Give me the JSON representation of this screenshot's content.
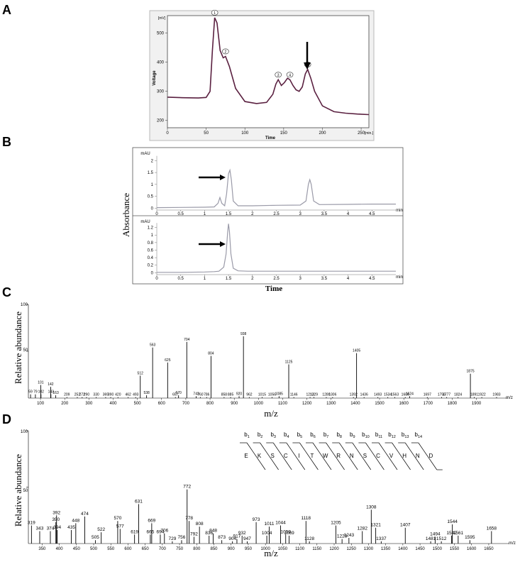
{
  "panels": {
    "A": {
      "letter": "A",
      "ylabel": "Voltage",
      "xlabel": "Time",
      "y_unit": "[mV]",
      "x_unit": "[min.]",
      "xticks": [
        0,
        50,
        100,
        150,
        200,
        250
      ],
      "yticks": [
        200,
        300,
        400,
        500
      ],
      "peak_markers": [
        {
          "label": "1",
          "x": 61,
          "y": 553
        },
        {
          "label": "2",
          "x": 75,
          "y": 420
        },
        {
          "label": "3",
          "x": 143,
          "y": 340
        },
        {
          "label": "4",
          "x": 158,
          "y": 340
        },
        {
          "label": "5",
          "x": 181,
          "y": 375
        }
      ]
    },
    "B": {
      "letter": "B",
      "ylabel": "Absorbance",
      "xlabel": "Time",
      "unit_y": "mAU",
      "unit_x": "min",
      "xticks": [
        "0",
        "0.5",
        "1",
        "1.5",
        "2",
        "2.5",
        "3",
        "3.5",
        "4",
        "4.5"
      ],
      "top_yticks": [
        "0",
        "0.5",
        "1",
        "1.5",
        "2"
      ],
      "bottom_yticks": [
        "0",
        "0.2",
        "0.4",
        "0.6",
        "0.8",
        "1",
        "1.2"
      ]
    },
    "C": {
      "letter": "C",
      "ylabel": "Relative abundance",
      "xlabel": "m/z",
      "unit": "m/z",
      "y_top": "100",
      "y_mid": "50",
      "xticks": [
        "100",
        "200",
        "300",
        "400",
        "500",
        "600",
        "700",
        "800",
        "900",
        "1000",
        "1100",
        "1200",
        "1300",
        "1400",
        "1500",
        "1600",
        "1700",
        "1800",
        "1900"
      ]
    },
    "D": {
      "letter": "D",
      "ylabel": "Relative abundance",
      "xlabel": "m/z",
      "unit": "m/z",
      "y_top": "100",
      "y_mid": "50",
      "xticks": [
        "350",
        "400",
        "450",
        "500",
        "550",
        "600",
        "650",
        "700",
        "750",
        "800",
        "850",
        "900",
        "950",
        "1000",
        "1050",
        "1100",
        "1150",
        "1200",
        "1250",
        "1300",
        "1350",
        "1400",
        "1450",
        "1500",
        "1550",
        "1600",
        "1650"
      ],
      "b_ions": [
        "b1",
        "b2",
        "b3",
        "b4",
        "b5",
        "b6",
        "b7",
        "b8",
        "b9",
        "b10",
        "b11",
        "b12",
        "b13",
        "b14"
      ],
      "sequence": [
        "E",
        "K",
        "S",
        "C",
        "I",
        "T",
        "W",
        "R",
        "N",
        "S",
        "C",
        "V",
        "H",
        "N",
        "D"
      ]
    }
  },
  "chart_data": [
    {
      "panel": "A",
      "type": "line",
      "xlabel": "Time",
      "ylabel": "Voltage",
      "xlim": [
        0,
        260
      ],
      "ylim": [
        175,
        560
      ],
      "x": [
        0,
        20,
        40,
        50,
        55,
        58,
        61,
        64,
        68,
        72,
        75,
        80,
        88,
        100,
        115,
        128,
        136,
        140,
        143,
        147,
        151,
        155,
        158,
        162,
        166,
        170,
        174,
        178,
        181,
        185,
        190,
        200,
        215,
        230,
        245,
        260
      ],
      "y": [
        280,
        278,
        277,
        279,
        300,
        440,
        553,
        535,
        440,
        415,
        420,
        385,
        310,
        265,
        258,
        262,
        290,
        325,
        340,
        320,
        330,
        345,
        340,
        320,
        305,
        300,
        315,
        360,
        375,
        345,
        300,
        250,
        230,
        225,
        222,
        220
      ]
    },
    {
      "panel": "B-top",
      "type": "line",
      "xlabel": "Time",
      "ylabel": "Absorbance",
      "xlim": [
        0,
        5
      ],
      "ylim": [
        -0.2,
        2.4
      ],
      "x": [
        0,
        0.5,
        1.0,
        1.2,
        1.28,
        1.32,
        1.36,
        1.42,
        1.46,
        1.5,
        1.53,
        1.56,
        1.6,
        1.7,
        2.0,
        2.5,
        3.0,
        3.12,
        3.17,
        3.2,
        3.23,
        3.28,
        3.4,
        4.0,
        4.5,
        5.0
      ],
      "y": [
        0.02,
        0.03,
        0.04,
        0.05,
        0.2,
        0.45,
        0.2,
        0.1,
        0.6,
        1.45,
        1.6,
        1.2,
        0.3,
        0.1,
        0.1,
        0.12,
        0.13,
        0.3,
        1.0,
        1.2,
        1.0,
        0.3,
        0.15,
        0.16,
        0.17,
        0.17
      ]
    },
    {
      "panel": "B-bottom",
      "type": "line",
      "xlabel": "Time",
      "ylabel": "Absorbance",
      "xlim": [
        0,
        5
      ],
      "ylim": [
        -0.05,
        1.4
      ],
      "x": [
        0,
        0.5,
        1.0,
        1.2,
        1.3,
        1.4,
        1.45,
        1.48,
        1.5,
        1.52,
        1.55,
        1.6,
        1.7,
        1.9,
        2.5,
        3.0,
        3.5,
        4.0,
        4.5,
        5.0
      ],
      "y": [
        0.01,
        0.01,
        0.02,
        0.03,
        0.04,
        0.15,
        0.5,
        1.05,
        1.3,
        1.1,
        0.5,
        0.12,
        0.05,
        0.04,
        0.04,
        0.04,
        0.04,
        0.04,
        0.04,
        0.04
      ]
    },
    {
      "panel": "C",
      "type": "bar",
      "xlabel": "m/z",
      "ylabel": "Relative abundance",
      "xlim": [
        50,
        2030
      ],
      "ylim": [
        0,
        100
      ],
      "peaks": [
        {
          "mz": 59,
          "i": 4,
          "label": "59"
        },
        {
          "mz": 79,
          "i": 4,
          "label": "79"
        },
        {
          "mz": 101,
          "i": 14,
          "label": "101"
        },
        {
          "mz": 102,
          "i": 4,
          "label": "102"
        },
        {
          "mz": 142,
          "i": 12,
          "label": "142"
        },
        {
          "mz": 143,
          "i": 4,
          "label": "143"
        },
        {
          "mz": 163,
          "i": 3,
          "label": "163"
        },
        {
          "mz": 209,
          "i": 1,
          "label": "209"
        },
        {
          "mz": 252,
          "i": 1,
          "label": "252"
        },
        {
          "mz": 272,
          "i": 1,
          "label": "272"
        },
        {
          "mz": 290,
          "i": 1,
          "label": "290"
        },
        {
          "mz": 330,
          "i": 1,
          "label": "330"
        },
        {
          "mz": 369,
          "i": 1,
          "label": "369"
        },
        {
          "mz": 390,
          "i": 1,
          "label": "390"
        },
        {
          "mz": 420,
          "i": 1,
          "label": "420"
        },
        {
          "mz": 462,
          "i": 1,
          "label": "462"
        },
        {
          "mz": 493,
          "i": 1,
          "label": "493"
        },
        {
          "mz": 512,
          "i": 24,
          "label": "512"
        },
        {
          "mz": 538,
          "i": 3,
          "label": "538"
        },
        {
          "mz": 563,
          "i": 54,
          "label": "563"
        },
        {
          "mz": 625,
          "i": 38,
          "label": "625"
        },
        {
          "mz": 657,
          "i": 1,
          "label": "657"
        },
        {
          "mz": 670,
          "i": 3,
          "label": "670"
        },
        {
          "mz": 704,
          "i": 60,
          "label": "704"
        },
        {
          "mz": 743,
          "i": 2,
          "label": "743"
        },
        {
          "mz": 760,
          "i": 1,
          "label": "760"
        },
        {
          "mz": 786,
          "i": 1,
          "label": "786"
        },
        {
          "mz": 804,
          "i": 45,
          "label": "804"
        },
        {
          "mz": 858,
          "i": 1,
          "label": "858"
        },
        {
          "mz": 885,
          "i": 1,
          "label": "885"
        },
        {
          "mz": 920,
          "i": 2,
          "label": "920"
        },
        {
          "mz": 938,
          "i": 66,
          "label": "938"
        },
        {
          "mz": 962,
          "i": 1,
          "label": "962"
        },
        {
          "mz": 1015,
          "i": 1,
          "label": "1015"
        },
        {
          "mz": 1056,
          "i": 1,
          "label": "1056"
        },
        {
          "mz": 1085,
          "i": 2,
          "label": "1085"
        },
        {
          "mz": 1125,
          "i": 36,
          "label": "1125"
        },
        {
          "mz": 1146,
          "i": 1,
          "label": "1146"
        },
        {
          "mz": 1213,
          "i": 1,
          "label": "1213"
        },
        {
          "mz": 1229,
          "i": 1,
          "label": "1229"
        },
        {
          "mz": 1280,
          "i": 1,
          "label": "1280"
        },
        {
          "mz": 1306,
          "i": 1,
          "label": "1306"
        },
        {
          "mz": 1392,
          "i": 1,
          "label": "1392"
        },
        {
          "mz": 1405,
          "i": 48,
          "label": "1405"
        },
        {
          "mz": 1436,
          "i": 1,
          "label": "1436"
        },
        {
          "mz": 1493,
          "i": 1,
          "label": "1493"
        },
        {
          "mz": 1534,
          "i": 1,
          "label": "1534"
        },
        {
          "mz": 1563,
          "i": 1,
          "label": "1563"
        },
        {
          "mz": 1606,
          "i": 1,
          "label": "1606"
        },
        {
          "mz": 1624,
          "i": 2,
          "label": "1624"
        },
        {
          "mz": 1697,
          "i": 1,
          "label": "1697"
        },
        {
          "mz": 1756,
          "i": 1,
          "label": "1756"
        },
        {
          "mz": 1777,
          "i": 1,
          "label": "1777"
        },
        {
          "mz": 1824,
          "i": 1,
          "label": "1824"
        },
        {
          "mz": 1875,
          "i": 26,
          "label": "1875"
        },
        {
          "mz": 1891,
          "i": 1,
          "label": "1891"
        },
        {
          "mz": 1922,
          "i": 1,
          "label": "1922"
        },
        {
          "mz": 1983,
          "i": 1,
          "label": "1983"
        }
      ]
    },
    {
      "panel": "D",
      "type": "bar",
      "xlabel": "m/z",
      "ylabel": "Relative abundance",
      "xlim": [
        310,
        1710
      ],
      "ylim": [
        0,
        100
      ],
      "peaks": [
        {
          "mz": 319,
          "i": 16,
          "label": "319"
        },
        {
          "mz": 343,
          "i": 11,
          "label": "343"
        },
        {
          "mz": 374,
          "i": 11,
          "label": "374"
        },
        {
          "mz": 390,
          "i": 19,
          "label": "390"
        },
        {
          "mz": 392,
          "i": 25,
          "label": "392"
        },
        {
          "mz": 394,
          "i": 12,
          "label": "394"
        },
        {
          "mz": 435,
          "i": 12,
          "label": "435"
        },
        {
          "mz": 448,
          "i": 18,
          "label": "448"
        },
        {
          "mz": 474,
          "i": 24,
          "label": "474"
        },
        {
          "mz": 505,
          "i": 3,
          "label": "505"
        },
        {
          "mz": 522,
          "i": 10,
          "label": "522"
        },
        {
          "mz": 570,
          "i": 20,
          "label": "570"
        },
        {
          "mz": 577,
          "i": 13,
          "label": "577"
        },
        {
          "mz": 619,
          "i": 8,
          "label": "619"
        },
        {
          "mz": 631,
          "i": 35,
          "label": "631"
        },
        {
          "mz": 665,
          "i": 8,
          "label": "665"
        },
        {
          "mz": 669,
          "i": 18,
          "label": "669"
        },
        {
          "mz": 694,
          "i": 8,
          "label": "694"
        },
        {
          "mz": 706,
          "i": 9,
          "label": "706"
        },
        {
          "mz": 729,
          "i": 2,
          "label": "729"
        },
        {
          "mz": 756,
          "i": 3,
          "label": "756"
        },
        {
          "mz": 772,
          "i": 48,
          "label": "772"
        },
        {
          "mz": 778,
          "i": 20,
          "label": "778"
        },
        {
          "mz": 792,
          "i": 6,
          "label": "792"
        },
        {
          "mz": 808,
          "i": 15,
          "label": "808"
        },
        {
          "mz": 836,
          "i": 7,
          "label": "836"
        },
        {
          "mz": 848,
          "i": 9,
          "label": "848"
        },
        {
          "mz": 873,
          "i": 3,
          "label": "873"
        },
        {
          "mz": 904,
          "i": 2,
          "label": "904"
        },
        {
          "mz": 917,
          "i": 4,
          "label": "917"
        },
        {
          "mz": 932,
          "i": 7,
          "label": "932"
        },
        {
          "mz": 947,
          "i": 2,
          "label": "947"
        },
        {
          "mz": 973,
          "i": 19,
          "label": "973"
        },
        {
          "mz": 1004,
          "i": 7,
          "label": "1004"
        },
        {
          "mz": 1011,
          "i": 15,
          "label": "1011"
        },
        {
          "mz": 1044,
          "i": 16,
          "label": "1044"
        },
        {
          "mz": 1059,
          "i": 8,
          "label": "1059"
        },
        {
          "mz": 1069,
          "i": 7,
          "label": "1069"
        },
        {
          "mz": 1118,
          "i": 20,
          "label": "1118"
        },
        {
          "mz": 1128,
          "i": 2,
          "label": "1128"
        },
        {
          "mz": 1205,
          "i": 16,
          "label": "1205"
        },
        {
          "mz": 1223,
          "i": 4,
          "label": "1223"
        },
        {
          "mz": 1243,
          "i": 5,
          "label": "1243"
        },
        {
          "mz": 1282,
          "i": 11,
          "label": "1282"
        },
        {
          "mz": 1308,
          "i": 30,
          "label": "1308"
        },
        {
          "mz": 1321,
          "i": 14,
          "label": "1321"
        },
        {
          "mz": 1337,
          "i": 2,
          "label": "1337"
        },
        {
          "mz": 1407,
          "i": 14,
          "label": "1407"
        },
        {
          "mz": 1481,
          "i": 2,
          "label": "1481"
        },
        {
          "mz": 1494,
          "i": 6,
          "label": "1494"
        },
        {
          "mz": 1512,
          "i": 2,
          "label": "1512"
        },
        {
          "mz": 1542,
          "i": 7,
          "label": "1542"
        },
        {
          "mz": 1544,
          "i": 17,
          "label": "1544"
        },
        {
          "mz": 1561,
          "i": 7,
          "label": "1561"
        },
        {
          "mz": 1595,
          "i": 3,
          "label": "1595"
        },
        {
          "mz": 1658,
          "i": 11,
          "label": "1658"
        }
      ]
    }
  ]
}
